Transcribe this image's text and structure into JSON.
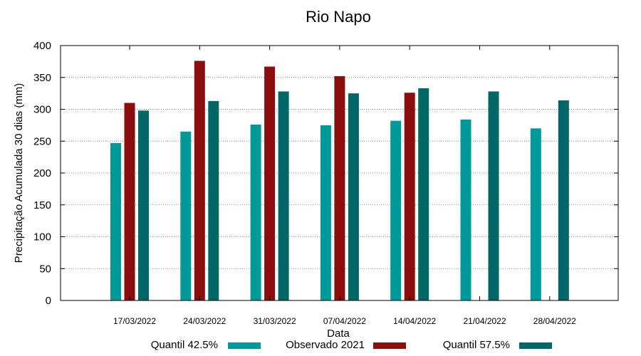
{
  "chart_data": {
    "type": "bar",
    "title": "Rio Napo",
    "xlabel": "Data",
    "ylabel": "Precipitação Acumulada 30 dias (mm)",
    "ylim": [
      0,
      400
    ],
    "yticks": [
      0,
      50,
      100,
      150,
      200,
      250,
      300,
      350,
      400
    ],
    "grid": true,
    "legend_position": "bottom",
    "categories": [
      "17/03/2022",
      "24/03/2022",
      "31/03/2022",
      "07/04/2022",
      "14/04/2022",
      "21/04/2022",
      "28/04/2022"
    ],
    "series": [
      {
        "name": "Quantil 42.5%",
        "color": "#009999",
        "values": [
          247,
          265,
          276,
          275,
          282,
          284,
          270
        ]
      },
      {
        "name": "Observado 2021",
        "color": "#8b0e0e",
        "values": [
          310,
          376,
          367,
          352,
          326,
          null,
          null
        ]
      },
      {
        "name": "Quantil 57.5%",
        "color": "#006666",
        "values": [
          298,
          313,
          328,
          325,
          333,
          328,
          314
        ]
      }
    ]
  }
}
